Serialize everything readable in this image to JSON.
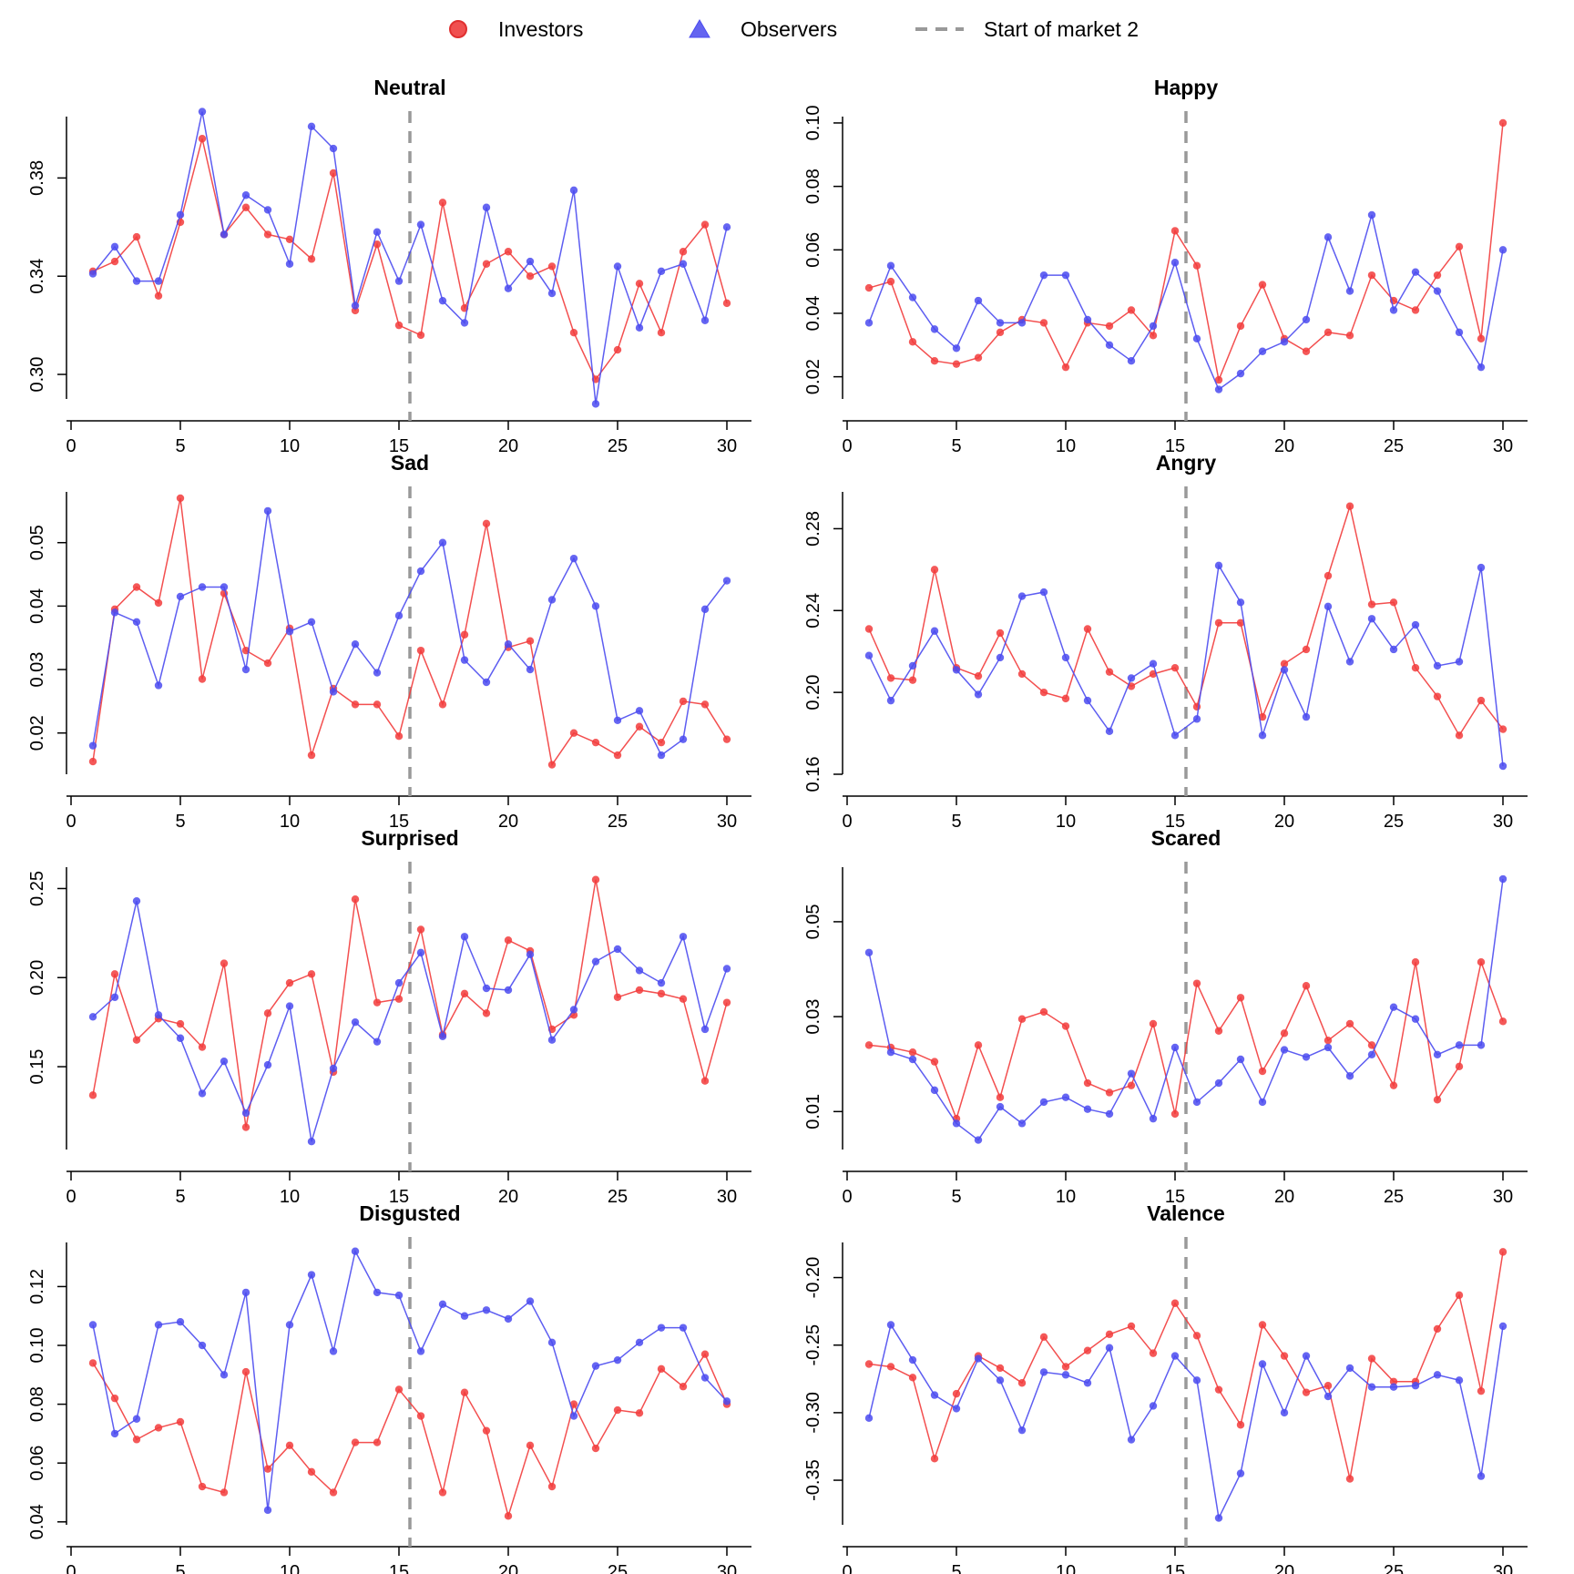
{
  "legend": {
    "items": [
      {
        "label": "Investors",
        "marker": "circle",
        "color": "#f05050"
      },
      {
        "label": "Observers",
        "marker": "triangle",
        "color": "#6464f0"
      },
      {
        "label": "Start of market 2",
        "marker": "dashed-line",
        "color": "#999999"
      }
    ]
  },
  "colors": {
    "investors": "#f23c3c",
    "observers": "#4b4bf0",
    "market2_line": "#999999",
    "axis": "#000000"
  },
  "chart_data": [
    {
      "type": "line",
      "title": "Neutral",
      "xlim": [
        0,
        30
      ],
      "ylim": [
        0.29,
        0.405
      ],
      "x_ticks": [
        0,
        5,
        10,
        15,
        20,
        25,
        30
      ],
      "y_ticks": [
        0.3,
        0.34,
        0.38
      ],
      "y_tick_labels": [
        "0.30",
        "0.34",
        "0.38"
      ],
      "market2_x": 15.5,
      "x": [
        1,
        2,
        3,
        4,
        5,
        6,
        7,
        8,
        9,
        10,
        11,
        12,
        13,
        14,
        15,
        16,
        17,
        18,
        19,
        20,
        21,
        22,
        23,
        24,
        25,
        26,
        27,
        28,
        29,
        30
      ],
      "series": [
        {
          "name": "Investors",
          "values": [
            0.342,
            0.346,
            0.356,
            0.332,
            0.362,
            0.396,
            0.357,
            0.368,
            0.357,
            0.355,
            0.347,
            0.382,
            0.326,
            0.353,
            0.32,
            0.316,
            0.37,
            0.327,
            0.345,
            0.35,
            0.34,
            0.344,
            0.317,
            0.298,
            0.31,
            0.337,
            0.317,
            0.35,
            0.361,
            0.329
          ]
        },
        {
          "name": "Observers",
          "values": [
            0.341,
            0.352,
            0.338,
            0.338,
            0.365,
            0.407,
            0.357,
            0.373,
            0.367,
            0.345,
            0.401,
            0.392,
            0.328,
            0.358,
            0.338,
            0.361,
            0.33,
            0.321,
            0.368,
            0.335,
            0.346,
            0.333,
            0.375,
            0.288,
            0.344,
            0.319,
            0.342,
            0.345,
            0.322,
            0.36
          ]
        }
      ]
    },
    {
      "type": "line",
      "title": "Happy",
      "xlim": [
        0,
        30
      ],
      "ylim": [
        0.013,
        0.102
      ],
      "x_ticks": [
        0,
        5,
        10,
        15,
        20,
        25,
        30
      ],
      "y_ticks": [
        0.02,
        0.04,
        0.06,
        0.08,
        0.1
      ],
      "y_tick_labels": [
        "0.02",
        "0.04",
        "0.06",
        "0.08",
        "0.10"
      ],
      "market2_x": 15.5,
      "x": [
        1,
        2,
        3,
        4,
        5,
        6,
        7,
        8,
        9,
        10,
        11,
        12,
        13,
        14,
        15,
        16,
        17,
        18,
        19,
        20,
        21,
        22,
        23,
        24,
        25,
        26,
        27,
        28,
        29,
        30
      ],
      "series": [
        {
          "name": "Investors",
          "values": [
            0.048,
            0.05,
            0.031,
            0.025,
            0.024,
            0.026,
            0.034,
            0.038,
            0.037,
            0.023,
            0.037,
            0.036,
            0.041,
            0.033,
            0.066,
            0.055,
            0.019,
            0.036,
            0.049,
            0.032,
            0.028,
            0.034,
            0.033,
            0.052,
            0.044,
            0.041,
            0.052,
            0.061,
            0.032,
            0.1
          ]
        },
        {
          "name": "Observers",
          "values": [
            0.037,
            0.055,
            0.045,
            0.035,
            0.029,
            0.044,
            0.037,
            0.037,
            0.052,
            0.052,
            0.038,
            0.03,
            0.025,
            0.036,
            0.056,
            0.032,
            0.016,
            0.021,
            0.028,
            0.031,
            0.038,
            0.064,
            0.047,
            0.071,
            0.041,
            0.053,
            0.047,
            0.034,
            0.023,
            0.06
          ]
        }
      ]
    },
    {
      "type": "line",
      "title": "Sad",
      "xlim": [
        0,
        30
      ],
      "ylim": [
        0.0135,
        0.058
      ],
      "x_ticks": [
        0,
        5,
        10,
        15,
        20,
        25,
        30
      ],
      "y_ticks": [
        0.02,
        0.03,
        0.04,
        0.05
      ],
      "y_tick_labels": [
        "0.02",
        "0.03",
        "0.04",
        "0.05"
      ],
      "market2_x": 15.5,
      "x": [
        1,
        2,
        3,
        4,
        5,
        6,
        7,
        8,
        9,
        10,
        11,
        12,
        13,
        14,
        15,
        16,
        17,
        18,
        19,
        20,
        21,
        22,
        23,
        24,
        25,
        26,
        27,
        28,
        29,
        30
      ],
      "series": [
        {
          "name": "Investors",
          "values": [
            0.0155,
            0.0395,
            0.043,
            0.0405,
            0.057,
            0.0285,
            0.042,
            0.033,
            0.031,
            0.0365,
            0.0165,
            0.027,
            0.0245,
            0.0245,
            0.0195,
            0.033,
            0.0245,
            0.0355,
            0.053,
            0.0335,
            0.0345,
            0.015,
            0.02,
            0.0185,
            0.0165,
            0.021,
            0.0185,
            0.025,
            0.0245,
            0.019
          ]
        },
        {
          "name": "Observers",
          "values": [
            0.018,
            0.039,
            0.0375,
            0.0275,
            0.0415,
            0.043,
            0.043,
            0.03,
            0.055,
            0.036,
            0.0375,
            0.0265,
            0.034,
            0.0295,
            0.0385,
            0.0455,
            0.05,
            0.0315,
            0.028,
            0.034,
            0.03,
            0.041,
            0.0475,
            0.04,
            0.022,
            0.0235,
            0.0165,
            0.019,
            0.0395,
            0.044
          ]
        }
      ]
    },
    {
      "type": "line",
      "title": "Angry",
      "xlim": [
        0,
        30
      ],
      "ylim": [
        0.16,
        0.298
      ],
      "x_ticks": [
        0,
        5,
        10,
        15,
        20,
        25,
        30
      ],
      "y_ticks": [
        0.16,
        0.2,
        0.24,
        0.28
      ],
      "y_tick_labels": [
        "0.16",
        "0.20",
        "0.24",
        "0.28"
      ],
      "market2_x": 15.5,
      "x": [
        1,
        2,
        3,
        4,
        5,
        6,
        7,
        8,
        9,
        10,
        11,
        12,
        13,
        14,
        15,
        16,
        17,
        18,
        19,
        20,
        21,
        22,
        23,
        24,
        25,
        26,
        27,
        28,
        29,
        30
      ],
      "series": [
        {
          "name": "Investors",
          "values": [
            0.231,
            0.207,
            0.206,
            0.26,
            0.212,
            0.208,
            0.229,
            0.209,
            0.2,
            0.197,
            0.231,
            0.21,
            0.203,
            0.209,
            0.212,
            0.193,
            0.234,
            0.234,
            0.188,
            0.214,
            0.221,
            0.257,
            0.291,
            0.243,
            0.244,
            0.212,
            0.198,
            0.179,
            0.196,
            0.182
          ]
        },
        {
          "name": "Observers",
          "values": [
            0.218,
            0.196,
            0.213,
            0.23,
            0.211,
            0.199,
            0.217,
            0.247,
            0.249,
            0.217,
            0.196,
            0.181,
            0.207,
            0.214,
            0.179,
            0.187,
            0.262,
            0.244,
            0.179,
            0.211,
            0.188,
            0.242,
            0.215,
            0.236,
            0.221,
            0.233,
            0.213,
            0.215,
            0.261,
            0.164
          ]
        }
      ]
    },
    {
      "type": "line",
      "title": "Surprised",
      "xlim": [
        0,
        30
      ],
      "ylim": [
        0.1035,
        0.262
      ],
      "x_ticks": [
        0,
        5,
        10,
        15,
        20,
        25,
        30
      ],
      "y_ticks": [
        0.15,
        0.2,
        0.25
      ],
      "y_tick_labels": [
        "0.15",
        "0.20",
        "0.25"
      ],
      "market2_x": 15.5,
      "x": [
        1,
        2,
        3,
        4,
        5,
        6,
        7,
        8,
        9,
        10,
        11,
        12,
        13,
        14,
        15,
        16,
        17,
        18,
        19,
        20,
        21,
        22,
        23,
        24,
        25,
        26,
        27,
        28,
        29,
        30
      ],
      "series": [
        {
          "name": "Investors",
          "values": [
            0.134,
            0.202,
            0.165,
            0.177,
            0.174,
            0.161,
            0.208,
            0.116,
            0.18,
            0.197,
            0.202,
            0.147,
            0.244,
            0.186,
            0.188,
            0.227,
            0.168,
            0.191,
            0.18,
            0.221,
            0.215,
            0.171,
            0.179,
            0.255,
            0.189,
            0.193,
            0.191,
            0.188,
            0.142,
            0.186
          ]
        },
        {
          "name": "Observers",
          "values": [
            0.178,
            0.189,
            0.243,
            0.179,
            0.166,
            0.135,
            0.153,
            0.124,
            0.151,
            0.184,
            0.108,
            0.149,
            0.175,
            0.164,
            0.197,
            0.214,
            0.167,
            0.223,
            0.194,
            0.193,
            0.213,
            0.165,
            0.182,
            0.209,
            0.216,
            0.204,
            0.197,
            0.223,
            0.171,
            0.205
          ]
        }
      ]
    },
    {
      "type": "line",
      "title": "Scared",
      "xlim": [
        0,
        30
      ],
      "ylim": [
        0.002,
        0.0615
      ],
      "x_ticks": [
        0,
        5,
        10,
        15,
        20,
        25,
        30
      ],
      "y_ticks": [
        0.01,
        0.03,
        0.05
      ],
      "y_tick_labels": [
        "0.01",
        "0.03",
        "0.05"
      ],
      "market2_x": 15.5,
      "x": [
        1,
        2,
        3,
        4,
        5,
        6,
        7,
        8,
        9,
        10,
        11,
        12,
        13,
        14,
        15,
        16,
        17,
        18,
        19,
        20,
        21,
        22,
        23,
        24,
        25,
        26,
        27,
        28,
        29,
        30
      ],
      "series": [
        {
          "name": "Investors",
          "values": [
            0.024,
            0.0235,
            0.0225,
            0.0205,
            0.0085,
            0.024,
            0.013,
            0.0295,
            0.031,
            0.028,
            0.016,
            0.014,
            0.0155,
            0.0285,
            0.0095,
            0.037,
            0.027,
            0.034,
            0.0185,
            0.0265,
            0.0365,
            0.025,
            0.0285,
            0.024,
            0.0155,
            0.0415,
            0.0125,
            0.0195,
            0.0415,
            0.029
          ]
        },
        {
          "name": "Observers",
          "values": [
            0.0435,
            0.0225,
            0.021,
            0.0145,
            0.0075,
            0.004,
            0.011,
            0.0075,
            0.012,
            0.013,
            0.0105,
            0.0095,
            0.018,
            0.0085,
            0.0235,
            0.012,
            0.016,
            0.021,
            0.012,
            0.023,
            0.0215,
            0.0235,
            0.0175,
            0.022,
            0.032,
            0.0295,
            0.022,
            0.024,
            0.024,
            0.059
          ]
        }
      ]
    },
    {
      "type": "line",
      "title": "Disgusted",
      "xlim": [
        0,
        30
      ],
      "ylim": [
        0.039,
        0.135
      ],
      "x_ticks": [
        0,
        5,
        10,
        15,
        20,
        25,
        30
      ],
      "y_ticks": [
        0.04,
        0.06,
        0.08,
        0.1,
        0.12
      ],
      "y_tick_labels": [
        "0.04",
        "0.06",
        "0.08",
        "0.10",
        "0.12"
      ],
      "market2_x": 15.5,
      "x": [
        1,
        2,
        3,
        4,
        5,
        6,
        7,
        8,
        9,
        10,
        11,
        12,
        13,
        14,
        15,
        16,
        17,
        18,
        19,
        20,
        21,
        22,
        23,
        24,
        25,
        26,
        27,
        28,
        29,
        30
      ],
      "series": [
        {
          "name": "Investors",
          "values": [
            0.094,
            0.082,
            0.068,
            0.072,
            0.074,
            0.052,
            0.05,
            0.091,
            0.058,
            0.066,
            0.057,
            0.05,
            0.067,
            0.067,
            0.085,
            0.076,
            0.05,
            0.084,
            0.071,
            0.042,
            0.066,
            0.052,
            0.08,
            0.065,
            0.078,
            0.077,
            0.092,
            0.086,
            0.097,
            0.08
          ]
        },
        {
          "name": "Observers",
          "values": [
            0.107,
            0.07,
            0.075,
            0.107,
            0.108,
            0.1,
            0.09,
            0.118,
            0.044,
            0.107,
            0.124,
            0.098,
            0.132,
            0.118,
            0.117,
            0.098,
            0.114,
            0.11,
            0.112,
            0.109,
            0.115,
            0.101,
            0.076,
            0.093,
            0.095,
            0.101,
            0.106,
            0.106,
            0.089,
            0.081
          ]
        }
      ]
    },
    {
      "type": "line",
      "title": "Valence",
      "xlim": [
        0,
        30
      ],
      "ylim": [
        -0.383,
        -0.174
      ],
      "x_ticks": [
        0,
        5,
        10,
        15,
        20,
        25,
        30
      ],
      "y_ticks": [
        -0.35,
        -0.3,
        -0.25,
        -0.2
      ],
      "y_tick_labels": [
        "-0.35",
        "-0.30",
        "-0.25",
        "-0.20"
      ],
      "market2_x": 15.5,
      "x": [
        1,
        2,
        3,
        4,
        5,
        6,
        7,
        8,
        9,
        10,
        11,
        12,
        13,
        14,
        15,
        16,
        17,
        18,
        19,
        20,
        21,
        22,
        23,
        24,
        25,
        26,
        27,
        28,
        29,
        30
      ],
      "series": [
        {
          "name": "Investors",
          "values": [
            -0.264,
            -0.266,
            -0.274,
            -0.334,
            -0.286,
            -0.258,
            -0.267,
            -0.278,
            -0.244,
            -0.266,
            -0.254,
            -0.242,
            -0.236,
            -0.256,
            -0.219,
            -0.243,
            -0.283,
            -0.309,
            -0.235,
            -0.258,
            -0.285,
            -0.28,
            -0.349,
            -0.26,
            -0.277,
            -0.277,
            -0.238,
            -0.213,
            -0.284,
            -0.181
          ]
        },
        {
          "name": "Observers",
          "values": [
            -0.304,
            -0.235,
            -0.261,
            -0.287,
            -0.297,
            -0.26,
            -0.276,
            -0.313,
            -0.27,
            -0.272,
            -0.278,
            -0.252,
            -0.32,
            -0.295,
            -0.258,
            -0.276,
            -0.378,
            -0.345,
            -0.264,
            -0.3,
            -0.258,
            -0.288,
            -0.267,
            -0.281,
            -0.281,
            -0.28,
            -0.272,
            -0.276,
            -0.347,
            -0.236
          ]
        }
      ]
    }
  ]
}
